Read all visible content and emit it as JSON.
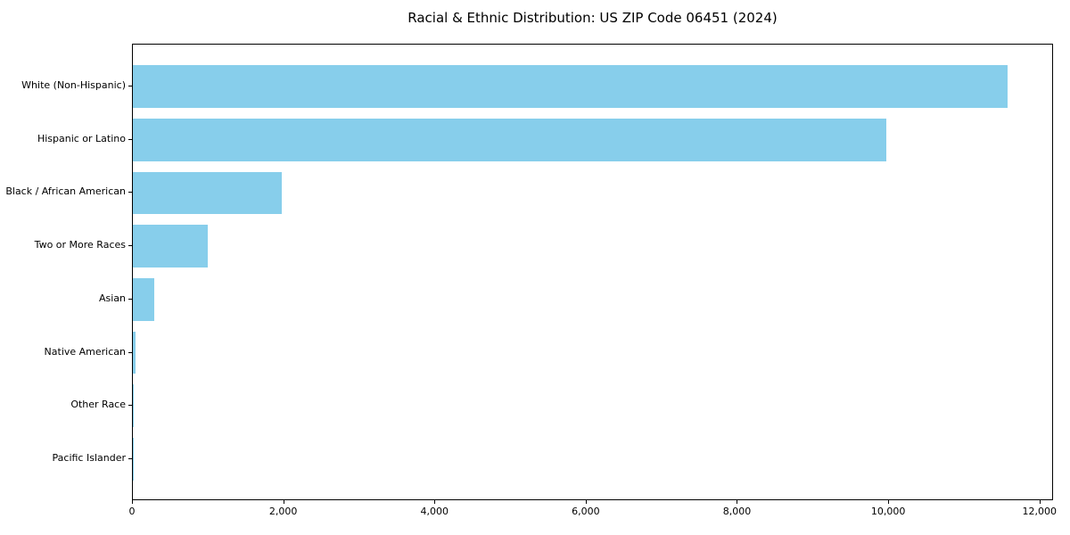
{
  "title": "Racial & Ethnic Distribution: US ZIP Code 06451 (2024)",
  "chart_data": {
    "type": "bar",
    "orientation": "horizontal",
    "title": "Racial & Ethnic Distribution: US ZIP Code 06451 (2024)",
    "categories": [
      "White (Non-Hispanic)",
      "Hispanic or Latino",
      "Black / African American",
      "Two or More Races",
      "Asian",
      "Native American",
      "Other Race",
      "Pacific Islander"
    ],
    "values": [
      11590,
      9980,
      1970,
      990,
      280,
      35,
      10,
      5
    ],
    "xlabel": "",
    "ylabel": "",
    "xlim": [
      0,
      12180
    ],
    "xticks": [
      0,
      2000,
      4000,
      6000,
      8000,
      10000,
      12000
    ],
    "xtick_labels": [
      "0",
      "2,000",
      "4,000",
      "6,000",
      "8,000",
      "10,000",
      "12,000"
    ],
    "bar_color": "#87CEEB",
    "text_color": "#000000",
    "grid": false,
    "legend": false
  }
}
